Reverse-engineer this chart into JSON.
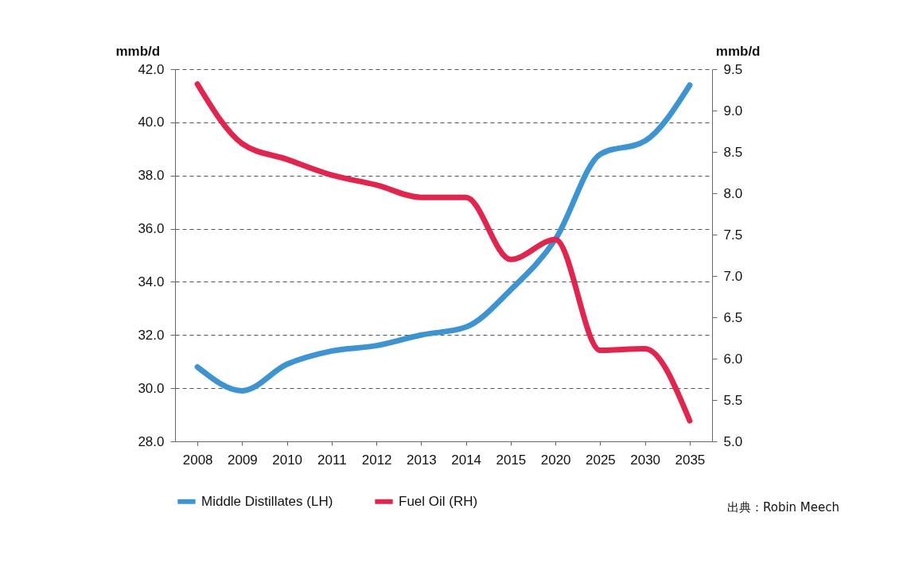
{
  "chart_data": {
    "type": "line",
    "categories": [
      "2008",
      "2009",
      "2010",
      "2011",
      "2012",
      "2013",
      "2014",
      "2015",
      "2020",
      "2025",
      "2030",
      "2035"
    ],
    "series": [
      {
        "name": "Middle Distillates (LH)",
        "color": "#3e94d1",
        "values": [
          30.8,
          29.9,
          30.9,
          31.4,
          31.6,
          32.0,
          32.3,
          33.7,
          35.6,
          38.8,
          39.3,
          41.4
        ]
      },
      {
        "name": "Fuel Oil (RH)",
        "color": "#e0264f",
        "axis": "y2",
        "values": [
          9.32,
          8.6,
          8.41,
          8.22,
          8.1,
          7.95,
          7.95,
          7.2,
          7.44,
          6.1,
          6.12,
          5.25
        ]
      }
    ],
    "ylabel": "mmb/d",
    "y2label": "mmb/d",
    "ylim": [
      28,
      42
    ],
    "yticks": [
      {
        "value": 28,
        "label": "28.0"
      },
      {
        "value": 30,
        "label": "30.0"
      },
      {
        "value": 32,
        "label": "32.0"
      },
      {
        "value": 34,
        "label": "34.0"
      },
      {
        "value": 36,
        "label": "36.0"
      },
      {
        "value": 38,
        "label": "38.0"
      },
      {
        "value": 40,
        "label": "40.0"
      },
      {
        "value": 42,
        "label": "42.0"
      }
    ],
    "y2lim": [
      5,
      9.5
    ],
    "y2ticks": [
      {
        "value": 5,
        "label": "5.0"
      },
      {
        "value": 5.5,
        "label": "5.5"
      },
      {
        "value": 6,
        "label": "6.0"
      },
      {
        "value": 6.5,
        "label": "6.5"
      },
      {
        "value": 7,
        "label": "7.0"
      },
      {
        "value": 7.5,
        "label": "7.5"
      },
      {
        "value": 8,
        "label": "8.0"
      },
      {
        "value": 8.5,
        "label": "8.5"
      },
      {
        "value": 9,
        "label": "9.0"
      },
      {
        "value": 9.5,
        "label": "9.5"
      }
    ],
    "grid": "y",
    "legend": "bottom",
    "marker": "none",
    "line_style": "solid",
    "annotations": [
      "出典：Robin Meech"
    ]
  }
}
